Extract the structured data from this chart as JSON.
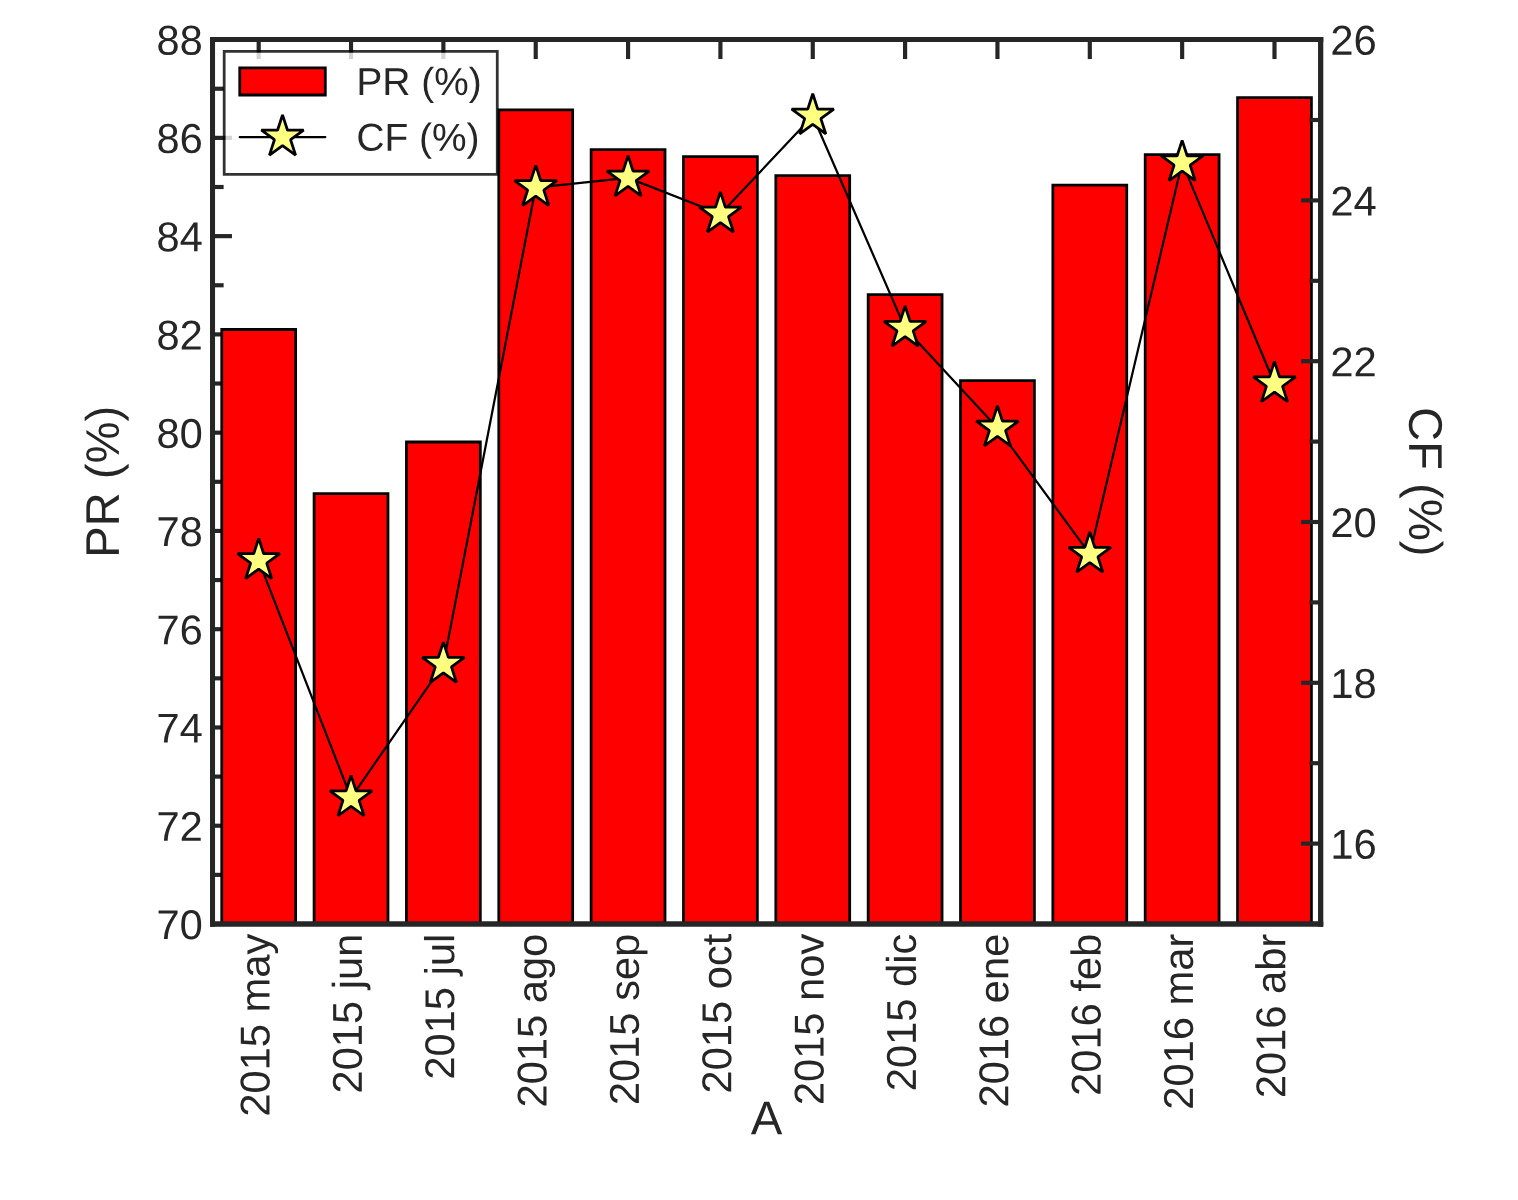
{
  "chart_data": {
    "type": "bar",
    "xlabel": "A",
    "ylabel": "PR (%)",
    "y2label": "CF (%)",
    "categories": [
      "2015 may",
      "2015 jun",
      "2015 jul",
      "2015 ago",
      "2015 sep",
      "2015 oct",
      "2015 nov",
      "2015 dic",
      "2016 ene",
      "2016 feb",
      "2016 mar",
      "2016 abr"
    ],
    "series": [
      {
        "name": "PR (%)",
        "color": "#ff0000",
        "values": [
          82.1,
          78.76,
          79.81,
          86.57,
          85.76,
          85.62,
          85.23,
          82.81,
          81.06,
          85.04,
          85.66,
          86.82
        ]
      },
      {
        "name": "CF (%)",
        "type": "line",
        "axis": "y2",
        "color": "#ffff80",
        "marker": "star",
        "line_style": "solid",
        "values": [
          19.52,
          16.57,
          18.23,
          24.16,
          24.28,
          23.83,
          25.05,
          22.41,
          21.17,
          19.6,
          24.47,
          21.72
        ]
      }
    ],
    "ylim": [
      70,
      88
    ],
    "yticks": [
      70,
      72,
      74,
      76,
      78,
      80,
      82,
      84,
      86,
      88
    ],
    "y2lim": [
      15,
      26
    ],
    "y2ticks": [
      16,
      18,
      20,
      22,
      24,
      26
    ],
    "legend": "top left",
    "grid": false
  }
}
